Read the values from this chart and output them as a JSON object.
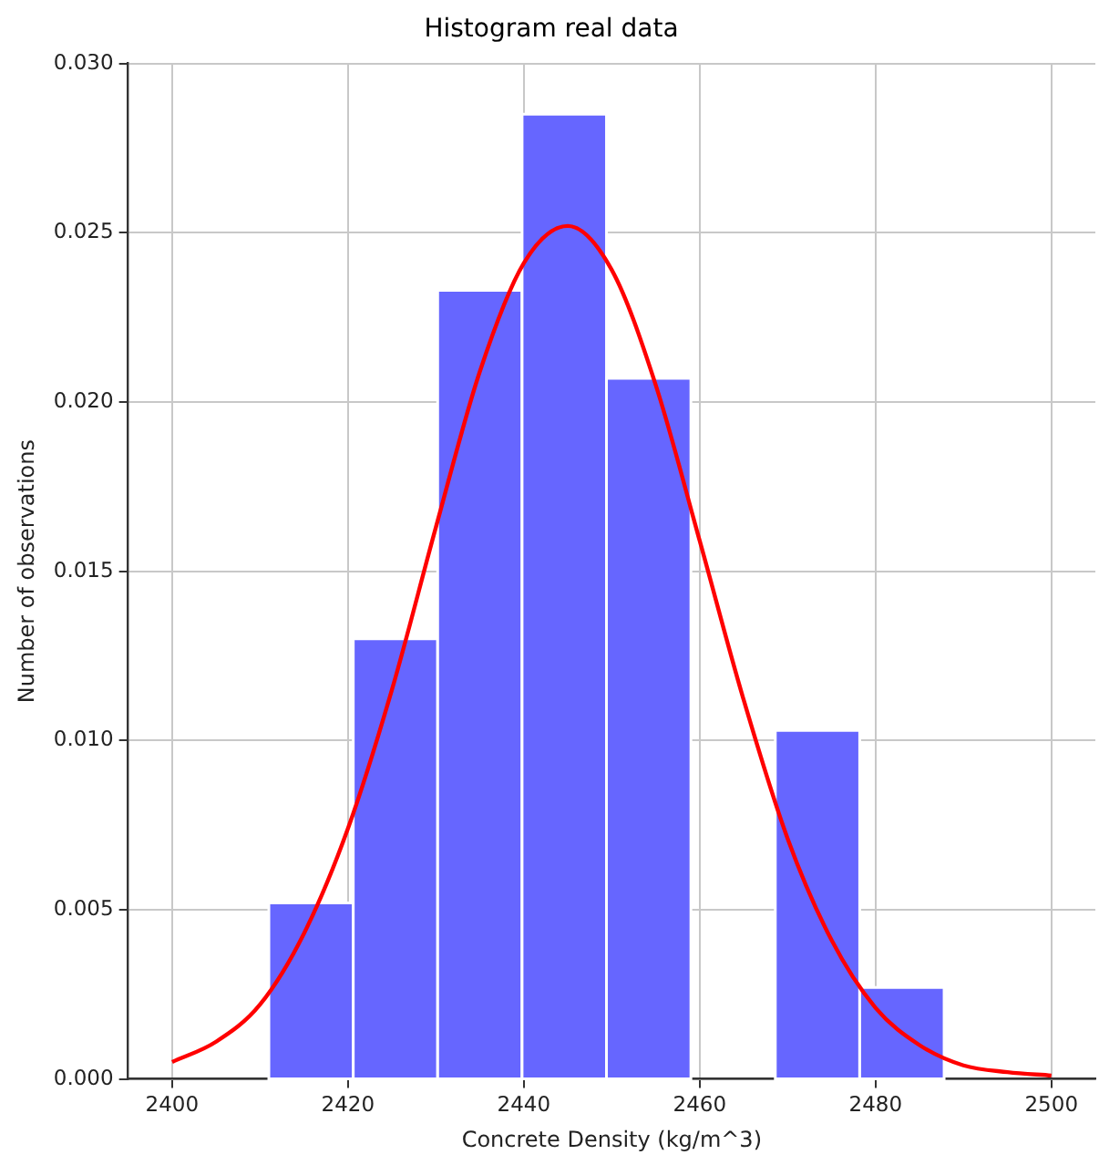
{
  "chart_data": {
    "type": "histogram",
    "title": "Histogram real data",
    "xlabel": "Concrete Density (kg/m^3)",
    "ylabel": "Number of observations",
    "bins": [
      2411,
      2420.6,
      2430.2,
      2439.8,
      2449.4,
      2459,
      2468.6,
      2478.2,
      2487.8
    ],
    "values": [
      0.0052,
      0.013,
      0.0233,
      0.0285,
      0.0207,
      0,
      0.0103,
      0.0027
    ],
    "color": "#6666ff",
    "series": [
      {
        "type": "line",
        "color": "#ff0000",
        "x": [
          2400,
          2405,
          2410,
          2415,
          2420,
          2425,
          2430,
          2435,
          2440,
          2445,
          2450,
          2455,
          2460,
          2465,
          2470,
          2475,
          2480,
          2485,
          2490,
          2495,
          2500
        ],
        "values": [
          0.0005,
          0.0011,
          0.0022,
          0.0043,
          0.0074,
          0.0115,
          0.0163,
          0.0209,
          0.0241,
          0.0252,
          0.0239,
          0.0205,
          0.0159,
          0.0112,
          0.0071,
          0.0041,
          0.0021,
          0.001,
          0.0004,
          0.0002,
          0.0001
        ]
      }
    ],
    "xlim": [
      2395,
      2505
    ],
    "xticks": [
      2400,
      2420,
      2440,
      2460,
      2480,
      2500
    ],
    "ylim": [
      0,
      0.03
    ],
    "yticks": [
      {
        "value": 0,
        "label": "0.000"
      },
      {
        "value": 0.005,
        "label": "0.005"
      },
      {
        "value": 0.01,
        "label": "0.010"
      },
      {
        "value": 0.015,
        "label": "0.015"
      },
      {
        "value": 0.02,
        "label": "0.020"
      },
      {
        "value": 0.025,
        "label": "0.025"
      },
      {
        "value": 0.03,
        "label": "0.030"
      }
    ],
    "grid": true,
    "legend": false,
    "marker": "none",
    "line_style": "solid"
  }
}
